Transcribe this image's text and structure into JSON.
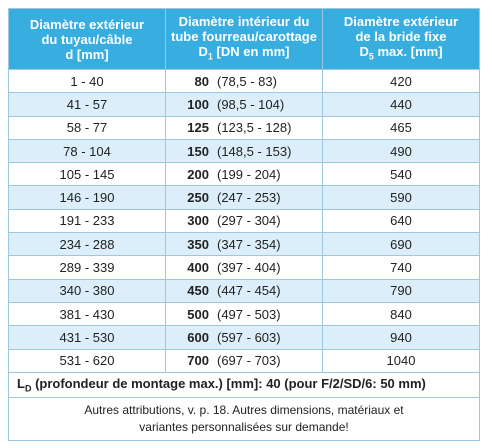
{
  "header": [
    {
      "lines": [
        "Diamètre extérieur",
        "du tuyau/câble",
        "d [mm]"
      ]
    },
    {
      "lines": [
        "Diamètre intérieur du",
        "tube fourreau/carottage"
      ],
      "symbol": "D",
      "sub": "1",
      "unit": "[DN en mm]"
    },
    {
      "lines": [
        "Diamètre extérieur",
        "de la bride fixe"
      ],
      "symbol": "D",
      "sub": "5",
      "unit": "max. [mm]"
    }
  ],
  "rows": [
    [
      "1 - 40",
      "80",
      "(78,5 - 83)",
      "420"
    ],
    [
      "41 - 57",
      "100",
      "(98,5 - 104)",
      "440"
    ],
    [
      "58 - 77",
      "125",
      "(123,5 - 128)",
      "465"
    ],
    [
      "78 - 104",
      "150",
      "(148,5 - 153)",
      "490"
    ],
    [
      "105 - 145",
      "200",
      "(199 - 204)",
      "540"
    ],
    [
      "146 - 190",
      "250",
      "(247 - 253)",
      "590"
    ],
    [
      "191 - 233",
      "300",
      "(297 - 304)",
      "640"
    ],
    [
      "234 - 288",
      "350",
      "(347 - 354)",
      "690"
    ],
    [
      "289 - 339",
      "400",
      "(397 - 404)",
      "740"
    ],
    [
      "340 - 380",
      "450",
      "(447 - 454)",
      "790"
    ],
    [
      "381 - 430",
      "500",
      "(497 - 503)",
      "840"
    ],
    [
      "431 - 530",
      "600",
      "(597 - 603)",
      "940"
    ],
    [
      "531 - 620",
      "700",
      "(697 - 703)",
      "1040"
    ]
  ],
  "footer": {
    "symbol": "L",
    "sub": "D",
    "text": "(profondeur de montage max.) [mm]: 40 (pour F/2/SD/6: 50 mm)"
  },
  "note": [
    "Autres attributions, v. p. 18. Autres dimensions, matériaux et",
    "variantes personnalisées sur demande!"
  ]
}
